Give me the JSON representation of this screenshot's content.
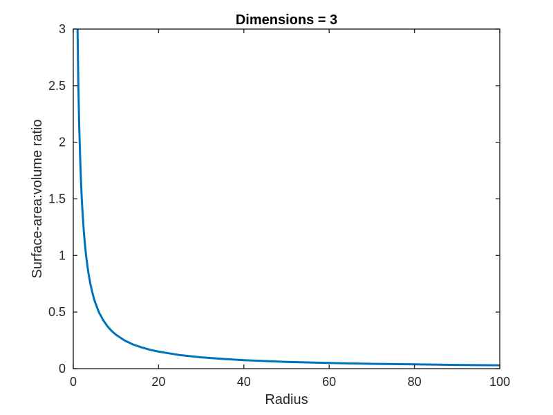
{
  "figure": {
    "title": "Dimensions = 3",
    "xlabel": "Radius",
    "ylabel": "Surface-area:volume ratio"
  },
  "chart_data": {
    "type": "line",
    "title": "Dimensions = 3",
    "xlabel": "Radius",
    "ylabel": "Surface-area:volume ratio",
    "xlim": [
      0,
      100
    ],
    "ylim": [
      0,
      3
    ],
    "x_ticks": [
      "0",
      "20",
      "40",
      "60",
      "80",
      "100"
    ],
    "y_ticks": [
      "0",
      "0.5",
      "1",
      "1.5",
      "2",
      "2.5",
      "3"
    ],
    "grid": "off",
    "legend": "none",
    "box": "on",
    "tick_direction": "in",
    "background_color": "#ffffff",
    "axis_color": "#262626",
    "series": [
      {
        "name": "surface-area-to-volume-ratio",
        "relation": "ratio = 3 / radius",
        "color": "#0072BD",
        "line_width": 3,
        "x": [
          1,
          1.05,
          1.1,
          1.15,
          1.2,
          1.3,
          1.4,
          1.5,
          1.6,
          1.8,
          2,
          2.2,
          2.5,
          2.8,
          3,
          3.5,
          4,
          4.5,
          5,
          6,
          7,
          8,
          9,
          10,
          12,
          14,
          16,
          18,
          20,
          25,
          30,
          35,
          40,
          50,
          60,
          70,
          80,
          90,
          100
        ],
        "y": [
          3,
          2.857,
          2.727,
          2.609,
          2.5,
          2.308,
          2.143,
          2,
          1.875,
          1.667,
          1.5,
          1.364,
          1.2,
          1.071,
          1,
          0.857,
          0.75,
          0.667,
          0.6,
          0.5,
          0.429,
          0.375,
          0.333,
          0.3,
          0.25,
          0.214,
          0.188,
          0.167,
          0.15,
          0.12,
          0.1,
          0.086,
          0.075,
          0.06,
          0.05,
          0.043,
          0.038,
          0.033,
          0.03
        ]
      }
    ]
  }
}
